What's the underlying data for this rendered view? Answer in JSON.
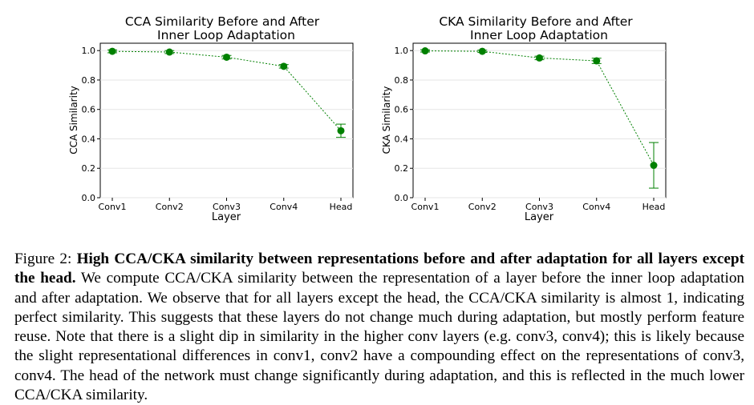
{
  "chart_data": [
    {
      "type": "line",
      "title_line1": "CCA Similarity Before and After",
      "title_line2": "Inner Loop Adaptation",
      "xlabel": "Layer",
      "ylabel": "CCA Similarity",
      "categories": [
        "Conv1",
        "Conv2",
        "Conv3",
        "Conv4",
        "Head"
      ],
      "values": [
        0.995,
        0.99,
        0.955,
        0.893,
        0.455
      ],
      "errors": [
        0.01,
        0.01,
        0.012,
        0.012,
        0.045
      ],
      "ylim": [
        0,
        1.05
      ],
      "yticks": [
        "0.0",
        "0.2",
        "0.4",
        "0.6",
        "0.8",
        "1.0"
      ],
      "color": "#008000"
    },
    {
      "type": "line",
      "title_line1": "CKA Similarity Before and After",
      "title_line2": "Inner Loop Adaptation",
      "xlabel": "Layer",
      "ylabel": "CKA Similarity",
      "categories": [
        "Conv1",
        "Conv2",
        "Conv3",
        "Conv4",
        "Head"
      ],
      "values": [
        0.998,
        0.995,
        0.95,
        0.93,
        0.22
      ],
      "errors": [
        0.008,
        0.008,
        0.012,
        0.018,
        0.155
      ],
      "ylim": [
        0,
        1.05
      ],
      "yticks": [
        "0.0",
        "0.2",
        "0.4",
        "0.6",
        "0.8",
        "1.0"
      ],
      "color": "#008000"
    }
  ],
  "caption": {
    "label": "Figure 2:",
    "bold": "High CCA/CKA similarity between representations before and after adaptation for all layers except the head.",
    "text": "We compute CCA/CKA similarity between the representation of a layer before the inner loop adaptation and after adaptation.  We observe that for all layers except the head, the CCA/CKA similarity is almost 1, indicating perfect similarity. This suggests that these layers do not change much during adaptation, but mostly perform feature reuse. Note that there is a slight dip in similarity in the higher conv layers (e.g. conv3, conv4); this is likely because the slight representational differences in conv1, conv2 have a compounding effect on the representations of conv3, conv4. The head of the network must change significantly during adaptation, and this is reflected in the much lower CCA/CKA similarity."
  }
}
